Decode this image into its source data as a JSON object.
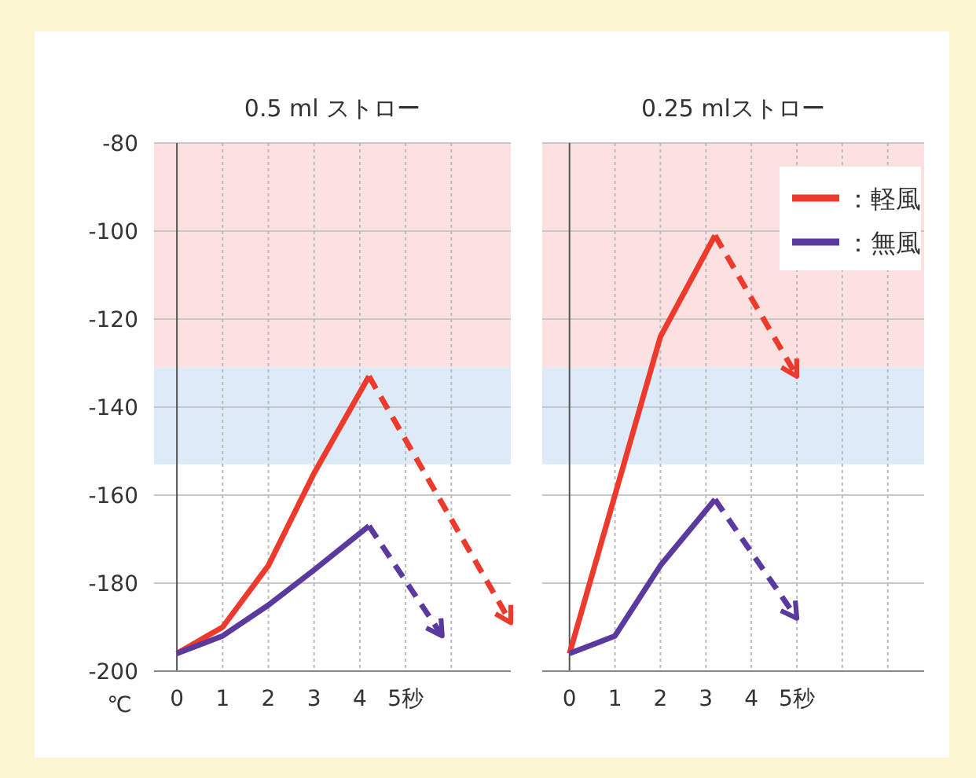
{
  "chart_data": [
    {
      "type": "line",
      "title": "0.5 ml ストロー",
      "ylabel": "℃",
      "xlim": [
        -0.5,
        7.3
      ],
      "ylim": [
        -200,
        -80
      ],
      "xticks": [
        0,
        1,
        2,
        3,
        4,
        {
          "value": 5,
          "label": "5秒"
        },
        {
          "value": 6,
          "label": null
        }
      ],
      "yticks": [
        -80,
        -100,
        -120,
        -140,
        -160,
        -180,
        -200
      ],
      "grid": true,
      "tick_labels": true,
      "legend": false,
      "bands": [
        {
          "axis": "y",
          "from": -131,
          "to": -80,
          "color": "#fbe1df"
        },
        {
          "axis": "y",
          "from": -153,
          "to": -131,
          "color": "#ddeaf7"
        }
      ],
      "series": [
        {
          "color": "#ee3a2c",
          "x": [
            0,
            1,
            2,
            3,
            4.2
          ],
          "values": [
            -196,
            -190,
            -176,
            -155,
            -133
          ]
        },
        {
          "color": "#ee3a2c",
          "line_style": "dashed",
          "x": [
            4.2,
            7.3
          ],
          "values": [
            -133,
            -189
          ]
        },
        {
          "color": "#5a3a9e",
          "x": [
            0,
            1,
            2,
            3,
            4.2
          ],
          "values": [
            -196,
            -192,
            -185,
            -177,
            -167
          ]
        },
        {
          "color": "#5a3a9e",
          "line_style": "dashed",
          "x": [
            4.2,
            5.8
          ],
          "values": [
            -167,
            -192
          ]
        }
      ]
    },
    {
      "type": "line",
      "title": "0.25 mlストロー",
      "xlim": [
        -0.6,
        7.8
      ],
      "ylim": [
        -200,
        -80
      ],
      "xticks": [
        0,
        1,
        2,
        3,
        4,
        {
          "value": 5,
          "label": "5秒"
        },
        {
          "value": 6,
          "label": null
        },
        {
          "value": 7,
          "label": null
        }
      ],
      "yticks": [
        -80,
        -100,
        -120,
        -140,
        -160,
        -180,
        -200
      ],
      "grid": true,
      "tick_labels": "x",
      "legend": "top right",
      "bands": [
        {
          "axis": "y",
          "from": -131,
          "to": -80,
          "color": "#fbe1df"
        },
        {
          "axis": "y",
          "from": -153,
          "to": -131,
          "color": "#ddeaf7"
        }
      ],
      "series": [
        {
          "name": "：軽風",
          "color": "#ee3a2c",
          "x": [
            0,
            2,
            3.2
          ],
          "values": [
            -196,
            -124,
            -101
          ]
        },
        {
          "color": "#ee3a2c",
          "line_style": "dashed",
          "x": [
            3.2,
            5.0
          ],
          "values": [
            -101,
            -133
          ]
        },
        {
          "name": "：無風",
          "color": "#5a3a9e",
          "x": [
            0,
            1,
            2,
            3.2
          ],
          "values": [
            -196,
            -192,
            -176,
            -161
          ]
        },
        {
          "color": "#5a3a9e",
          "line_style": "dashed",
          "x": [
            3.2,
            5.0
          ],
          "values": [
            -161,
            -188
          ]
        }
      ]
    }
  ]
}
